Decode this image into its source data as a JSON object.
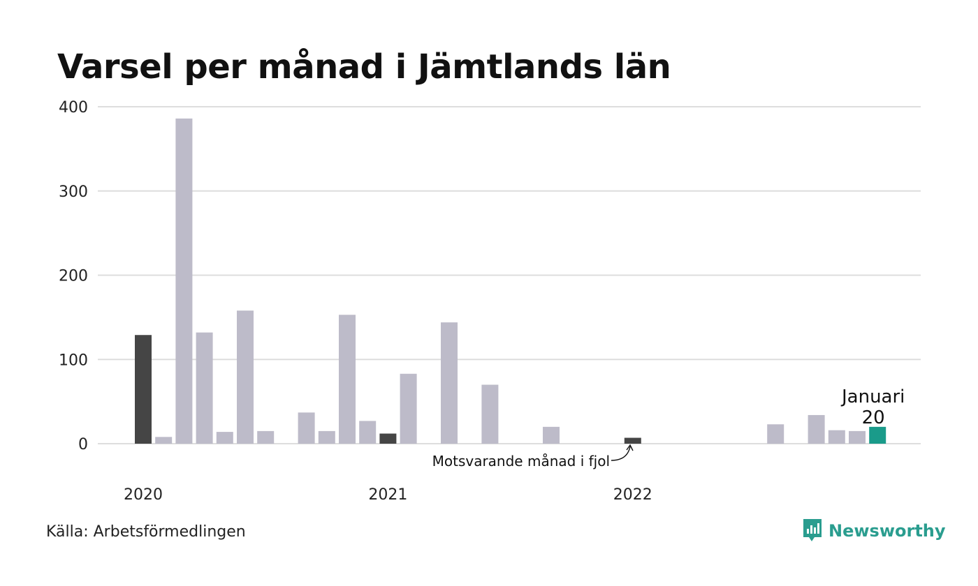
{
  "title": "Varsel per månad i Jämtlands län",
  "source": "Källa: Arbetsförmedlingen",
  "brand": "Newsworthy",
  "colors": {
    "default_bar": "#bdbbc9",
    "same_month_bar": "#454545",
    "current_bar": "#1a9b8a",
    "grid": "#dddddd",
    "brand": "#2a9d8f"
  },
  "chart_data": {
    "type": "bar",
    "title": "Varsel per månad i Jämtlands län",
    "ylim": [
      0,
      400
    ],
    "y_ticks": [
      0,
      100,
      200,
      300,
      400
    ],
    "grid": true,
    "x_year_labels": [
      {
        "label": "2020",
        "month_index": 0
      },
      {
        "label": "2021",
        "month_index": 12
      },
      {
        "label": "2022",
        "month_index": 24
      }
    ],
    "categories": [
      "2020-01",
      "2020-02",
      "2020-03",
      "2020-04",
      "2020-05",
      "2020-06",
      "2020-07",
      "2020-08",
      "2020-09",
      "2020-10",
      "2020-11",
      "2020-12",
      "2021-01",
      "2021-02",
      "2021-03",
      "2021-04",
      "2021-05",
      "2021-06",
      "2021-07",
      "2021-08",
      "2021-09",
      "2021-10",
      "2021-11",
      "2021-12",
      "2022-01",
      "2022-02",
      "2022-03",
      "2022-04",
      "2022-05",
      "2022-06",
      "2022-07",
      "2022-08",
      "2022-09",
      "2022-10",
      "2022-11",
      "2022-12",
      "2023-01"
    ],
    "values": [
      129,
      8,
      386,
      132,
      14,
      158,
      15,
      0,
      37,
      15,
      153,
      27,
      12,
      83,
      0,
      144,
      0,
      70,
      0,
      0,
      20,
      0,
      0,
      0,
      7,
      0,
      0,
      0,
      0,
      0,
      0,
      23,
      0,
      34,
      16,
      15,
      20
    ],
    "same_month_indices": [
      0,
      12,
      24
    ],
    "current_index": 36,
    "current_label": "Januari",
    "current_value_label": "20",
    "annotation": "Motsvarande månad i fjol"
  }
}
